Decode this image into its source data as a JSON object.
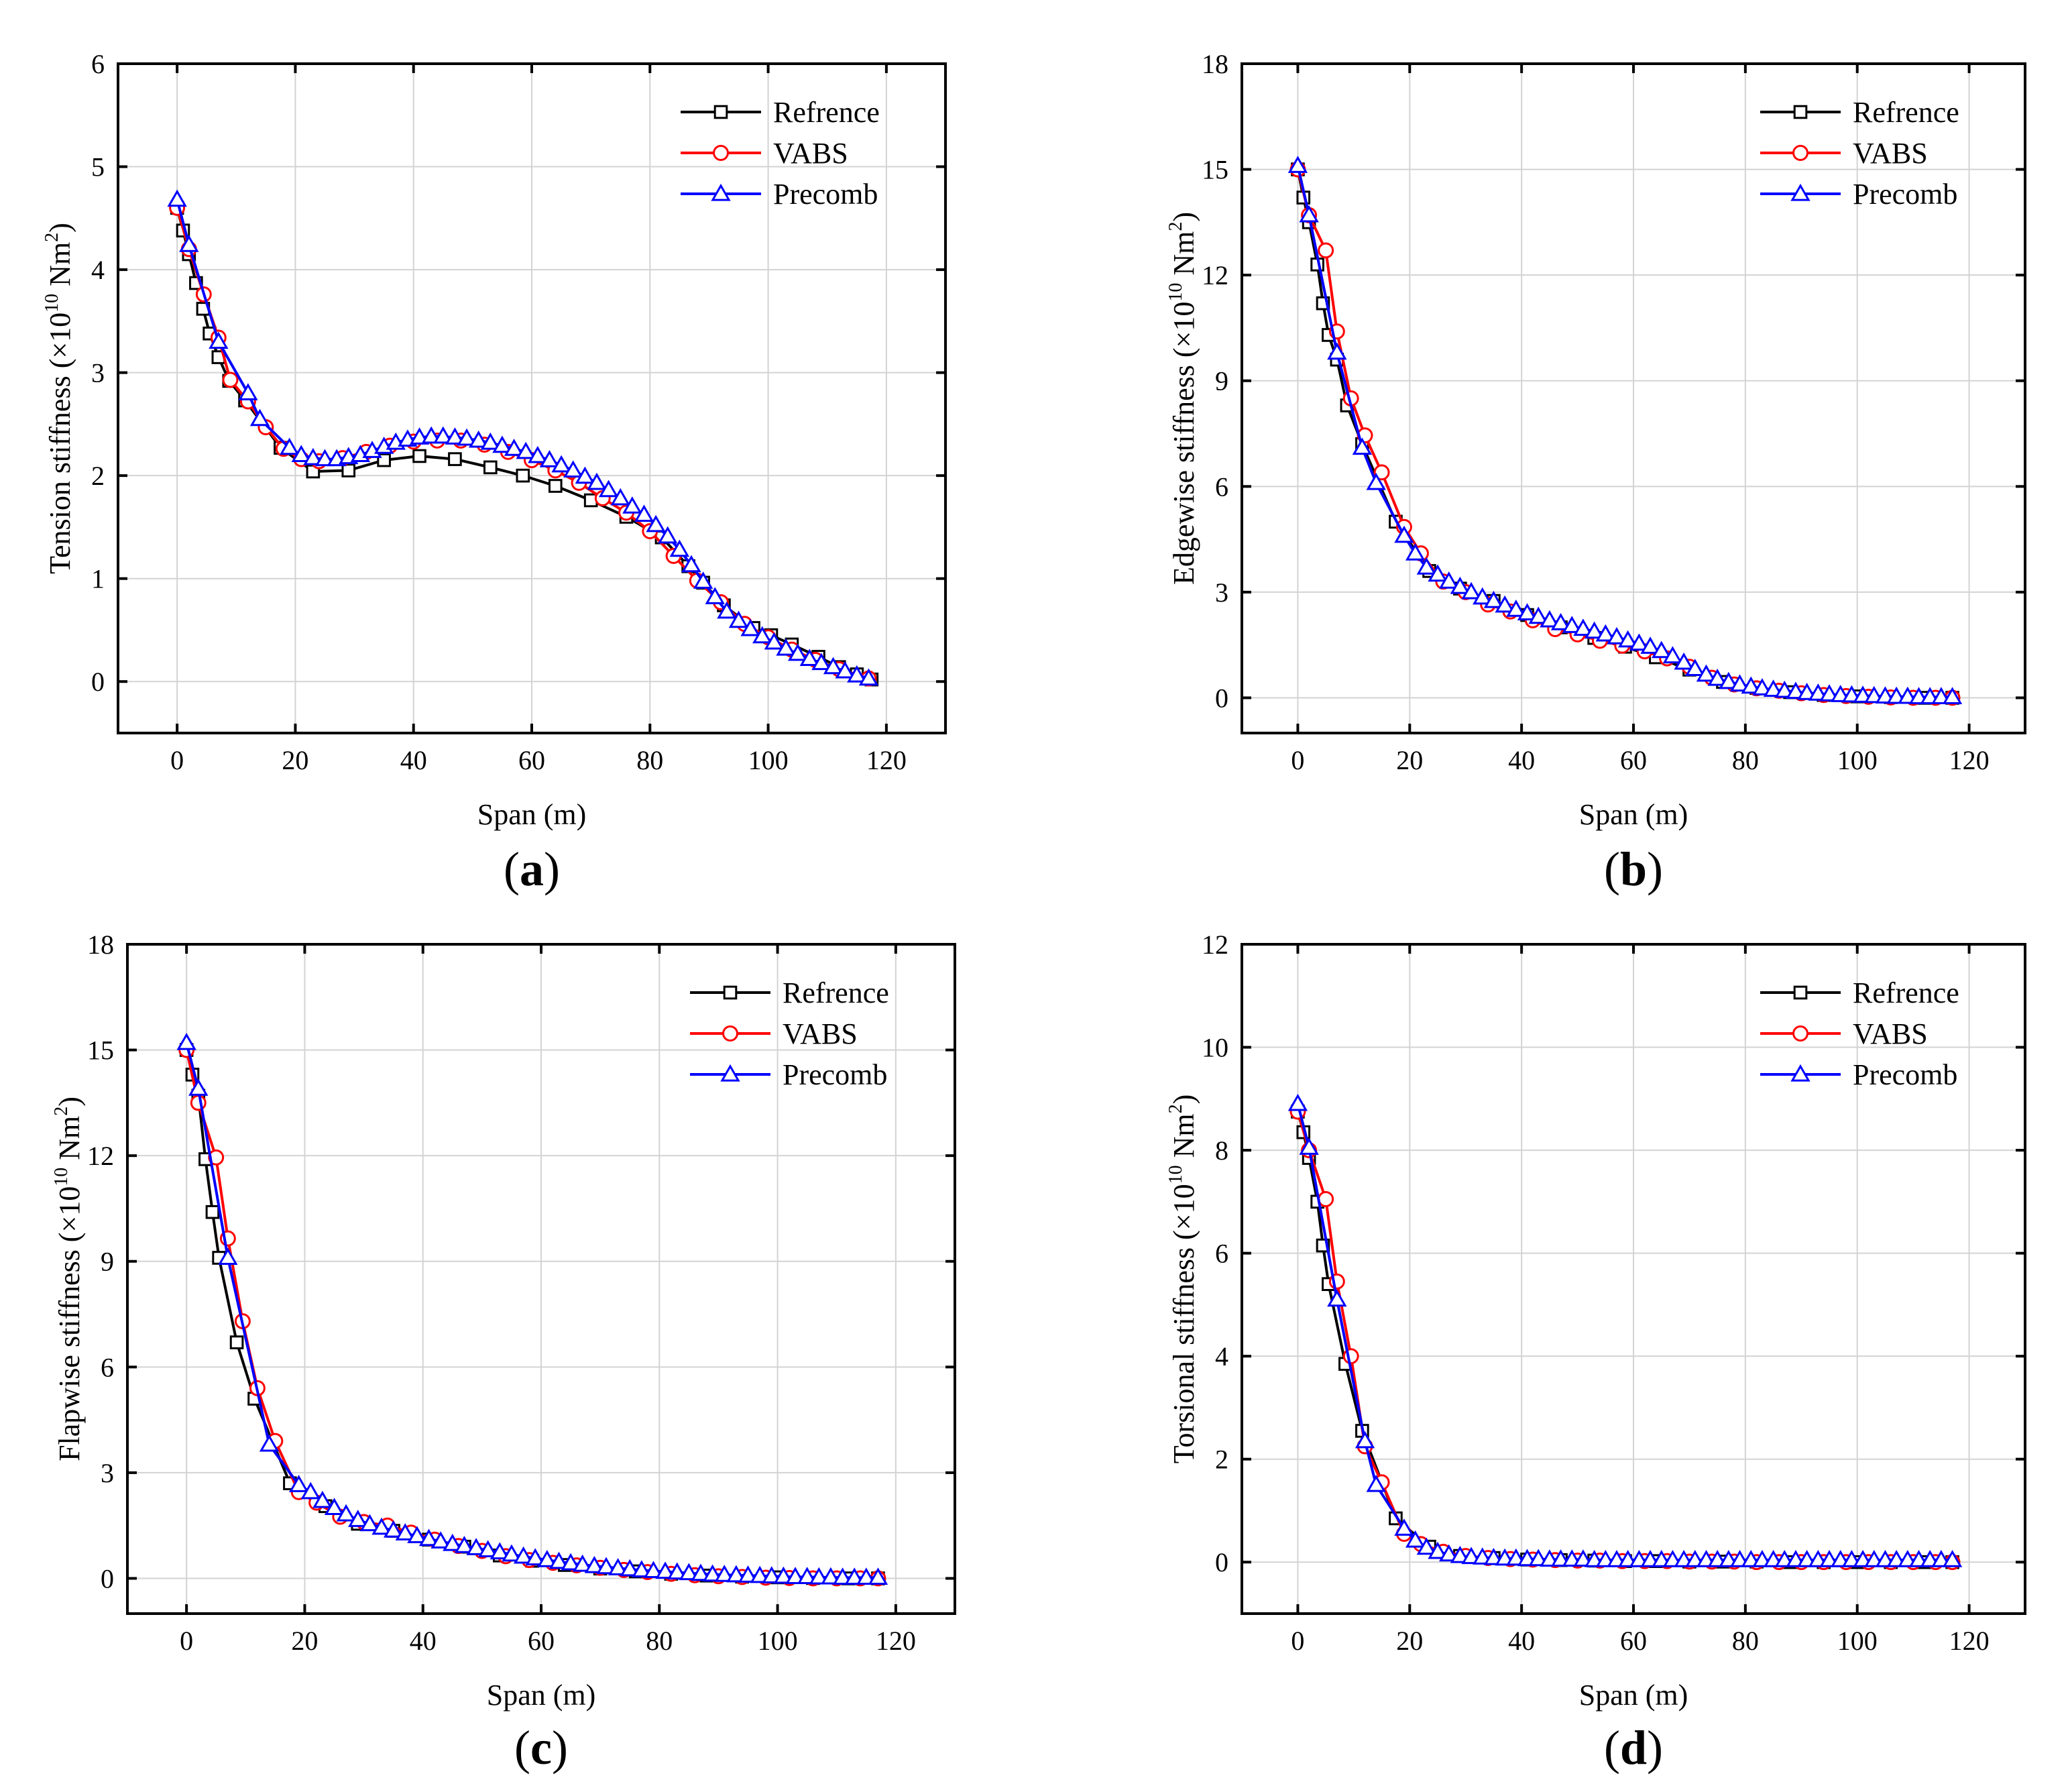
{
  "figure": {
    "series_colors": {
      "Refrence": "#000000",
      "VABS": "#ff0000",
      "Precomb": "#0000ff"
    },
    "series_markers": {
      "Refrence": "square",
      "VABS": "circle",
      "Precomb": "triangle"
    }
  },
  "chart_data": [
    {
      "type": "line",
      "panel": "(a)",
      "panel_open": "(",
      "panel_letter": "a",
      "panel_close": ")",
      "xlabel": "Span (m)",
      "ylabel_main": "Tension stiffness (×10",
      "ylabel_exp": "10",
      "ylabel_unit": " Nm",
      "ylabel_sq": "2",
      "ylabel_close": ")",
      "xlim": [
        -10,
        130
      ],
      "ylim": [
        -0.5,
        6
      ],
      "xticks": [
        0,
        20,
        40,
        60,
        80,
        100,
        120
      ],
      "yticks": [
        0,
        1,
        2,
        3,
        4,
        5,
        6
      ],
      "legend_position": "top-right",
      "series": [
        {
          "name": "Refrence",
          "x": [
            0,
            1,
            2,
            3.2,
            4.4,
            5.5,
            7,
            8.8,
            11.5,
            17.5,
            23,
            29,
            35,
            41,
            47,
            53,
            58.5,
            64,
            70,
            76,
            82,
            86.5,
            89,
            92.5,
            97.5,
            100.5,
            104,
            108.5,
            112,
            115,
            117.5
          ],
          "y": [
            4.6,
            4.38,
            4.15,
            3.87,
            3.62,
            3.38,
            3.15,
            2.92,
            2.73,
            2.27,
            2.04,
            2.05,
            2.15,
            2.19,
            2.16,
            2.08,
            2.0,
            1.9,
            1.76,
            1.6,
            1.4,
            1.12,
            0.96,
            0.74,
            0.52,
            0.45,
            0.36,
            0.24,
            0.14,
            0.07,
            0.02
          ]
        },
        {
          "name": "VABS",
          "x": [
            0,
            2,
            4.5,
            7,
            9,
            12,
            15,
            18,
            21,
            24,
            28,
            32,
            36,
            40,
            44,
            48,
            52,
            56,
            60,
            64,
            68,
            72,
            76,
            80,
            84,
            88,
            92,
            96,
            100,
            104,
            108,
            112,
            117
          ],
          "y": [
            4.6,
            4.2,
            3.76,
            3.34,
            2.93,
            2.72,
            2.47,
            2.26,
            2.16,
            2.14,
            2.17,
            2.23,
            2.29,
            2.33,
            2.34,
            2.34,
            2.3,
            2.23,
            2.15,
            2.05,
            1.93,
            1.78,
            1.64,
            1.46,
            1.22,
            0.98,
            0.77,
            0.56,
            0.43,
            0.31,
            0.21,
            0.12,
            0.03
          ]
        },
        {
          "name": "Precomb",
          "x": [
            0,
            2,
            7,
            12,
            14,
            19,
            21,
            23,
            25,
            27,
            29,
            31,
            33,
            35,
            37,
            39,
            41,
            43,
            45,
            47,
            49,
            51,
            53,
            55,
            57,
            59,
            61,
            63,
            65,
            67,
            69,
            71,
            73,
            75,
            77,
            79,
            81,
            83,
            85,
            87,
            89,
            91,
            93,
            95,
            97,
            99,
            101,
            103,
            105,
            107,
            109,
            111,
            113,
            115,
            117
          ],
          "y": [
            4.68,
            4.24,
            3.3,
            2.8,
            2.55,
            2.27,
            2.2,
            2.17,
            2.16,
            2.16,
            2.18,
            2.2,
            2.24,
            2.28,
            2.32,
            2.35,
            2.37,
            2.38,
            2.38,
            2.37,
            2.36,
            2.34,
            2.32,
            2.29,
            2.26,
            2.23,
            2.19,
            2.15,
            2.1,
            2.05,
            1.99,
            1.93,
            1.86,
            1.78,
            1.7,
            1.62,
            1.52,
            1.41,
            1.28,
            1.13,
            0.97,
            0.82,
            0.68,
            0.59,
            0.51,
            0.44,
            0.38,
            0.32,
            0.27,
            0.22,
            0.18,
            0.14,
            0.1,
            0.06,
            0.03
          ]
        }
      ]
    },
    {
      "type": "line",
      "panel": "(b)",
      "panel_open": "(",
      "panel_letter": "b",
      "panel_close": ")",
      "xlabel": "Span (m)",
      "ylabel_main": "Edgewise stiffness (×10",
      "ylabel_exp": "10",
      "ylabel_unit": " Nm",
      "ylabel_sq": "2",
      "ylabel_close": ")",
      "xlim": [
        -10,
        130
      ],
      "ylim": [
        -1,
        18
      ],
      "xticks": [
        0,
        20,
        40,
        60,
        80,
        100,
        120
      ],
      "yticks": [
        0,
        3,
        6,
        9,
        12,
        15,
        18
      ],
      "legend_position": "top-right",
      "series": [
        {
          "name": "Refrence",
          "x": [
            0,
            1,
            2,
            3.5,
            4.5,
            5.5,
            7,
            8.8,
            11.5,
            17.5,
            23.5,
            29,
            35,
            41,
            47,
            53,
            58.5,
            64,
            70,
            76,
            82,
            88,
            94,
            100,
            106,
            112,
            117
          ],
          "y": [
            15.0,
            14.2,
            13.5,
            12.3,
            11.2,
            10.3,
            9.6,
            8.3,
            7.2,
            5.0,
            3.6,
            3.1,
            2.75,
            2.35,
            2.0,
            1.7,
            1.45,
            1.15,
            0.8,
            0.45,
            0.28,
            0.16,
            0.08,
            0.04,
            0.02,
            0.0,
            0.0
          ]
        },
        {
          "name": "VABS",
          "x": [
            0,
            2,
            5,
            7,
            9.5,
            12,
            15,
            19,
            22,
            26,
            30,
            34,
            38,
            42,
            46,
            50,
            54,
            58,
            62,
            66,
            70,
            74,
            78,
            82,
            86,
            90,
            94,
            98,
            102,
            106,
            110,
            114,
            117
          ],
          "y": [
            15.0,
            13.7,
            12.7,
            10.4,
            8.5,
            7.45,
            6.4,
            4.85,
            4.1,
            3.3,
            3.0,
            2.65,
            2.45,
            2.2,
            1.95,
            1.8,
            1.62,
            1.48,
            1.32,
            1.12,
            0.88,
            0.57,
            0.38,
            0.27,
            0.2,
            0.13,
            0.08,
            0.05,
            0.03,
            0.01,
            0.0,
            0.0,
            0.0
          ]
        },
        {
          "name": "Precomb",
          "x": [
            0,
            2,
            7,
            11.5,
            14,
            19,
            21,
            23,
            25,
            27,
            29,
            31,
            33,
            35,
            37,
            39,
            41,
            43,
            45,
            47,
            49,
            51,
            53,
            55,
            57,
            59,
            61,
            63,
            65,
            67,
            69,
            71,
            73,
            75,
            77,
            79,
            81,
            83,
            85,
            87,
            89,
            91,
            93,
            95,
            97,
            99,
            101,
            103,
            105,
            107,
            109,
            111,
            113,
            115,
            117
          ],
          "y": [
            15.1,
            13.7,
            9.8,
            7.1,
            6.1,
            4.6,
            4.1,
            3.7,
            3.5,
            3.3,
            3.15,
            3.0,
            2.85,
            2.75,
            2.62,
            2.5,
            2.4,
            2.3,
            2.2,
            2.12,
            2.04,
            1.96,
            1.88,
            1.8,
            1.72,
            1.63,
            1.54,
            1.45,
            1.33,
            1.18,
            1.0,
            0.82,
            0.66,
            0.54,
            0.45,
            0.38,
            0.32,
            0.27,
            0.23,
            0.2,
            0.17,
            0.14,
            0.12,
            0.1,
            0.08,
            0.07,
            0.06,
            0.05,
            0.04,
            0.03,
            0.03,
            0.02,
            0.02,
            0.02,
            0.02
          ]
        }
      ]
    },
    {
      "type": "line",
      "panel": "(c)",
      "panel_open": "(",
      "panel_letter": "c",
      "panel_close": ")",
      "xlabel": "Span (m)",
      "ylabel_main": "Flapwise stiffness (×10",
      "ylabel_exp": "10",
      "ylabel_unit": " Nm",
      "ylabel_sq": "2",
      "ylabel_close": ")",
      "xlim": [
        -10,
        130
      ],
      "ylim": [
        -1,
        18
      ],
      "xticks": [
        0,
        20,
        40,
        60,
        80,
        100,
        120
      ],
      "yticks": [
        0,
        3,
        6,
        9,
        12,
        15,
        18
      ],
      "legend_position": "top-right",
      "series": [
        {
          "name": "Refrence",
          "x": [
            0,
            1,
            2,
            3.2,
            4.4,
            5.5,
            8.5,
            11.5,
            17.5,
            23.5,
            29,
            35,
            41,
            47,
            53,
            58.5,
            64,
            70,
            76,
            82,
            88,
            94,
            100,
            106,
            112,
            117
          ],
          "y": [
            15.0,
            14.3,
            13.7,
            11.9,
            10.4,
            9.1,
            6.7,
            5.1,
            2.7,
            2.05,
            1.55,
            1.35,
            1.1,
            0.9,
            0.65,
            0.5,
            0.38,
            0.28,
            0.2,
            0.13,
            0.08,
            0.05,
            0.03,
            0.01,
            0.0,
            0.0
          ]
        },
        {
          "name": "VABS",
          "x": [
            0,
            2,
            5,
            7,
            9.5,
            12,
            15,
            19,
            22,
            26,
            30,
            34,
            38,
            42,
            46,
            50,
            54,
            58,
            62,
            66,
            70,
            74,
            78,
            82,
            86,
            90,
            94,
            98,
            102,
            106,
            110,
            114,
            117
          ],
          "y": [
            15.0,
            13.5,
            11.95,
            9.65,
            7.3,
            5.4,
            3.9,
            2.45,
            2.15,
            1.75,
            1.6,
            1.5,
            1.3,
            1.1,
            0.92,
            0.78,
            0.63,
            0.52,
            0.44,
            0.37,
            0.3,
            0.24,
            0.18,
            0.13,
            0.09,
            0.06,
            0.04,
            0.02,
            0.01,
            0.0,
            0.0,
            0.0,
            0.0
          ]
        },
        {
          "name": "Precomb",
          "x": [
            0,
            2,
            7,
            14,
            19,
            21,
            23,
            25,
            27,
            29,
            31,
            33,
            35,
            37,
            39,
            41,
            43,
            45,
            47,
            49,
            51,
            53,
            55,
            57,
            59,
            61,
            63,
            65,
            67,
            69,
            71,
            73,
            75,
            77,
            79,
            81,
            83,
            85,
            87,
            89,
            91,
            93,
            95,
            97,
            99,
            101,
            103,
            105,
            107,
            109,
            111,
            113,
            115,
            117
          ],
          "y": [
            15.2,
            13.9,
            9.1,
            3.8,
            2.65,
            2.45,
            2.2,
            2.0,
            1.82,
            1.66,
            1.54,
            1.44,
            1.36,
            1.28,
            1.2,
            1.12,
            1.05,
            0.98,
            0.92,
            0.86,
            0.8,
            0.74,
            0.68,
            0.62,
            0.57,
            0.52,
            0.47,
            0.43,
            0.39,
            0.35,
            0.32,
            0.29,
            0.26,
            0.23,
            0.21,
            0.19,
            0.17,
            0.15,
            0.13,
            0.11,
            0.1,
            0.09,
            0.08,
            0.07,
            0.06,
            0.05,
            0.04,
            0.04,
            0.03,
            0.03,
            0.02,
            0.02,
            0.02,
            0.02
          ]
        }
      ]
    },
    {
      "type": "line",
      "panel": "(d)",
      "panel_open": "(",
      "panel_letter": "d",
      "panel_close": ")",
      "xlabel": "Span (m)",
      "ylabel_main": "Torsional stiffness (×10",
      "ylabel_exp": "10",
      "ylabel_unit": " Nm",
      "ylabel_sq": "2",
      "ylabel_close": ")",
      "xlim": [
        -10,
        130
      ],
      "ylim": [
        -1,
        12
      ],
      "xticks": [
        0,
        20,
        40,
        60,
        80,
        100,
        120
      ],
      "yticks": [
        0,
        2,
        4,
        6,
        8,
        10,
        12
      ],
      "legend_position": "top-right",
      "series": [
        {
          "name": "Refrence",
          "x": [
            0,
            1,
            2,
            3.5,
            4.5,
            5.5,
            8.5,
            11.5,
            17.5,
            23.5,
            29,
            35,
            41,
            47,
            53,
            58.5,
            64,
            70,
            76,
            82,
            88,
            94,
            100,
            106,
            112,
            117
          ],
          "y": [
            8.75,
            8.35,
            7.85,
            7.0,
            6.15,
            5.4,
            3.85,
            2.55,
            0.85,
            0.3,
            0.12,
            0.08,
            0.05,
            0.04,
            0.03,
            0.02,
            0.02,
            0.01,
            0.01,
            0.01,
            0.0,
            0.0,
            0.0,
            0.0,
            0.0,
            0.0
          ]
        },
        {
          "name": "VABS",
          "x": [
            0,
            2,
            5,
            7,
            9.5,
            12,
            15,
            19,
            22,
            26,
            30,
            34,
            38,
            42,
            46,
            50,
            54,
            58,
            62,
            66,
            70,
            74,
            78,
            82,
            86,
            90,
            94,
            98,
            102,
            106,
            110,
            114,
            117
          ],
          "y": [
            8.75,
            8.0,
            7.05,
            5.45,
            4.0,
            2.25,
            1.55,
            0.55,
            0.35,
            0.2,
            0.12,
            0.08,
            0.06,
            0.05,
            0.04,
            0.03,
            0.03,
            0.02,
            0.02,
            0.02,
            0.01,
            0.01,
            0.01,
            0.0,
            0.0,
            0.0,
            0.0,
            0.0,
            0.0,
            0.0,
            0.0,
            0.0,
            0.0
          ]
        },
        {
          "name": "Precomb",
          "x": [
            0,
            2,
            7,
            12,
            14,
            19,
            21,
            23,
            25,
            27,
            29,
            31,
            33,
            35,
            37,
            39,
            41,
            43,
            45,
            47,
            49,
            51,
            53,
            55,
            57,
            59,
            61,
            63,
            65,
            67,
            69,
            71,
            73,
            75,
            77,
            79,
            81,
            83,
            85,
            87,
            89,
            91,
            93,
            95,
            97,
            99,
            101,
            103,
            105,
            107,
            109,
            111,
            113,
            115,
            117
          ],
          "y": [
            8.9,
            8.05,
            5.1,
            2.35,
            1.5,
            0.65,
            0.42,
            0.28,
            0.2,
            0.15,
            0.12,
            0.1,
            0.09,
            0.08,
            0.07,
            0.07,
            0.06,
            0.06,
            0.05,
            0.05,
            0.05,
            0.05,
            0.04,
            0.04,
            0.04,
            0.04,
            0.04,
            0.04,
            0.04,
            0.04,
            0.04,
            0.04,
            0.04,
            0.04,
            0.04,
            0.04,
            0.04,
            0.04,
            0.04,
            0.04,
            0.04,
            0.04,
            0.04,
            0.04,
            0.04,
            0.04,
            0.04,
            0.04,
            0.04,
            0.04,
            0.04,
            0.04,
            0.04,
            0.04,
            0.04
          ]
        }
      ]
    }
  ]
}
